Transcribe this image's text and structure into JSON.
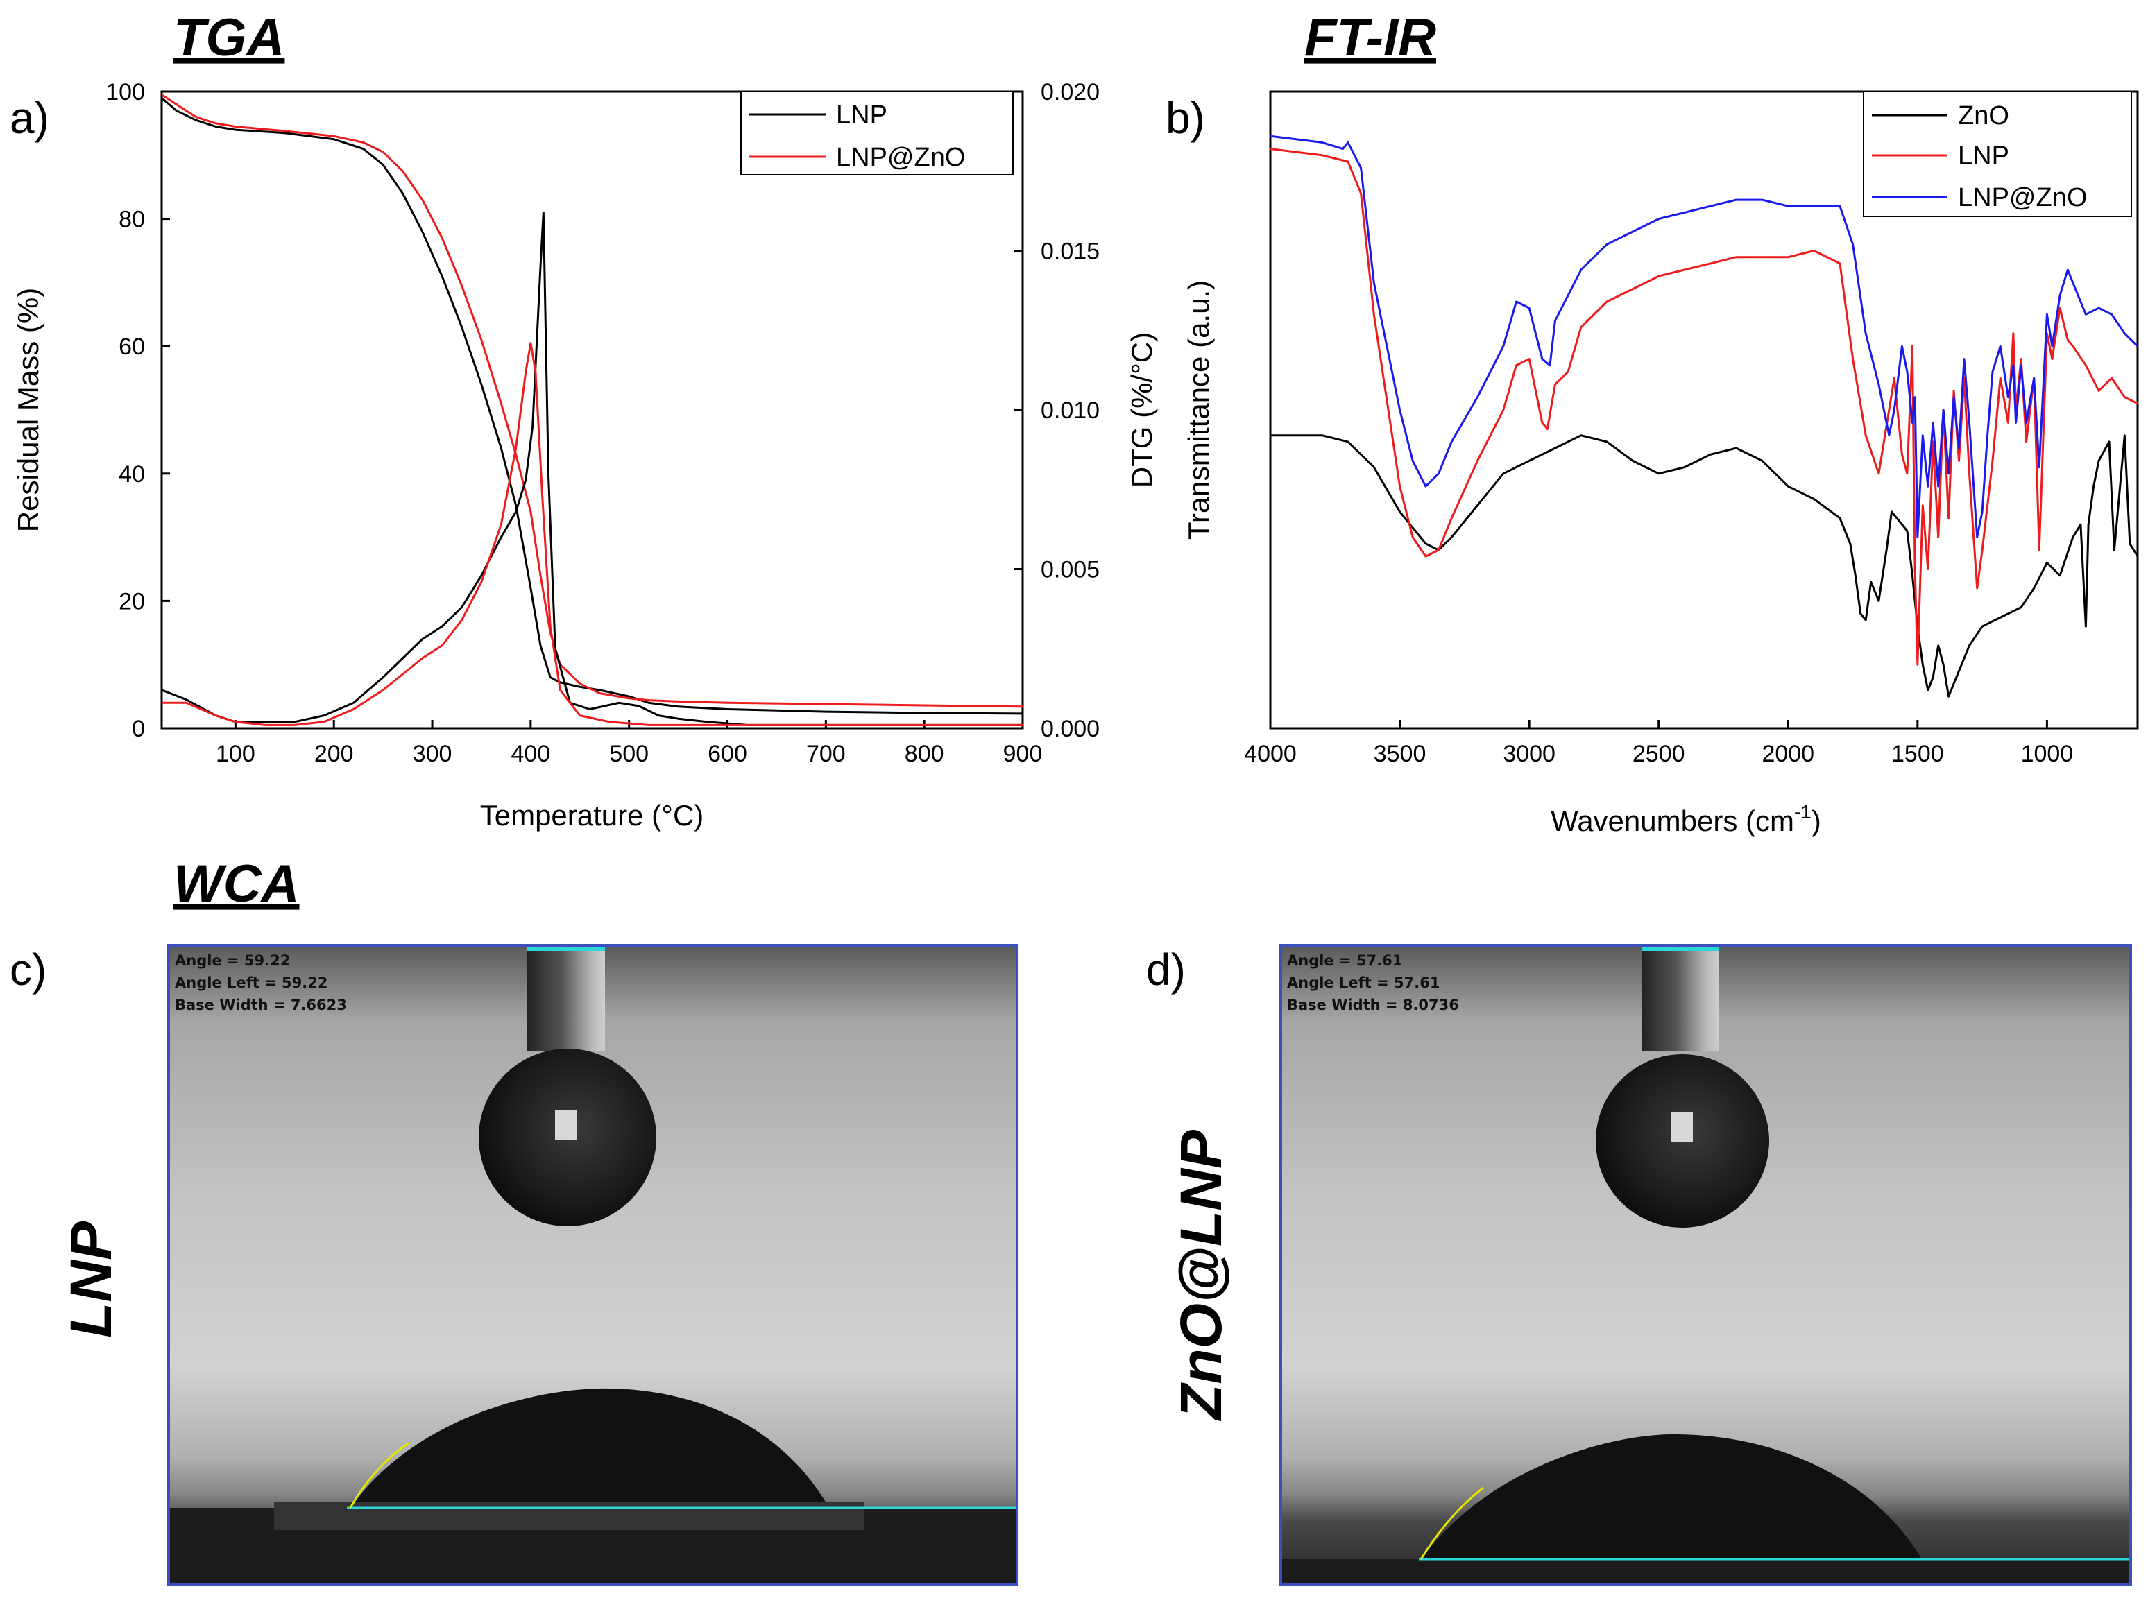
{
  "titles": {
    "tga": "TGA",
    "ftir": "FT-IR",
    "wca": "WCA"
  },
  "colors": {
    "black": "#000000",
    "red": "#ee1c1c",
    "blue": "#1a1aee",
    "cyan": "#2bd6d6",
    "frame": "#3b4fbf"
  },
  "chart_data": [
    {
      "panel": "a)",
      "type": "line",
      "title": "TGA",
      "xlabel": "Temperature (°C)",
      "ylabel": "Residual Mass (%)",
      "ylabel2": "DTG (%/°C)",
      "xlim": [
        25,
        900
      ],
      "ylim": [
        0,
        100
      ],
      "ylim2": [
        0,
        0.02
      ],
      "xticks": [
        "100",
        "200",
        "300",
        "400",
        "500",
        "600",
        "700",
        "800",
        "900"
      ],
      "yticks": [
        "0",
        "20",
        "40",
        "60",
        "80",
        "100"
      ],
      "yticks2": [
        "0.000",
        "0.005",
        "0.010",
        "0.015",
        "0.020"
      ],
      "legend": [
        {
          "name": "LNP",
          "color": "#000000"
        },
        {
          "name": "LNP@ZnO",
          "color": "#ee1c1c"
        }
      ],
      "legend_position": "top-right",
      "series": [
        {
          "name": "LNP",
          "axis": "mass",
          "color": "#000000",
          "x": [
            25,
            40,
            60,
            80,
            100,
            150,
            200,
            230,
            250,
            270,
            290,
            310,
            330,
            350,
            370,
            385,
            400,
            410,
            420,
            430,
            450,
            470,
            500,
            520,
            550,
            600,
            700,
            800,
            900
          ],
          "y": [
            99,
            97,
            95.5,
            94.5,
            94,
            93.5,
            92.5,
            91,
            88.5,
            84,
            78,
            71,
            63,
            54,
            44,
            35,
            22,
            13,
            8,
            7.2,
            6.5,
            6,
            5,
            4,
            3.4,
            3,
            2.6,
            2.4,
            2.3
          ]
        },
        {
          "name": "LNP@ZnO",
          "axis": "mass",
          "color": "#ee1c1c",
          "x": [
            25,
            40,
            60,
            80,
            100,
            150,
            200,
            230,
            250,
            270,
            290,
            310,
            330,
            350,
            370,
            385,
            400,
            410,
            420,
            430,
            450,
            470,
            500,
            520,
            550,
            600,
            700,
            800,
            900
          ],
          "y": [
            99.5,
            98,
            96,
            95,
            94.5,
            93.8,
            93,
            92,
            90.5,
            87.5,
            83,
            77,
            69.5,
            61,
            51,
            43,
            34,
            24,
            15,
            10,
            7,
            5.5,
            4.7,
            4.4,
            4.2,
            4,
            3.8,
            3.6,
            3.4
          ]
        },
        {
          "name": "LNP DTG",
          "axis": "dtg",
          "color": "#000000",
          "x": [
            25,
            50,
            80,
            100,
            130,
            160,
            190,
            220,
            250,
            270,
            290,
            310,
            330,
            350,
            370,
            385,
            395,
            402,
            410,
            413,
            418,
            425,
            440,
            460,
            490,
            510,
            530,
            550,
            580,
            620,
            700,
            800,
            900
          ],
          "y": [
            0.0012,
            0.0009,
            0.0004,
            0.0002,
            0.0002,
            0.0002,
            0.0004,
            0.0008,
            0.0016,
            0.0022,
            0.0028,
            0.0032,
            0.0038,
            0.0048,
            0.006,
            0.0068,
            0.0078,
            0.0095,
            0.0145,
            0.0162,
            0.008,
            0.0025,
            0.0008,
            0.0006,
            0.0008,
            0.0007,
            0.0004,
            0.0003,
            0.0002,
            0.0001,
            0.0001,
            0.0001,
            0.0001
          ]
        },
        {
          "name": "LNP@ZnO DTG",
          "axis": "dtg",
          "color": "#ee1c1c",
          "x": [
            25,
            50,
            80,
            100,
            130,
            160,
            190,
            220,
            250,
            270,
            290,
            310,
            330,
            350,
            370,
            385,
            395,
            400,
            405,
            412,
            420,
            430,
            450,
            480,
            520,
            600,
            700,
            800,
            900
          ],
          "y": [
            0.0008,
            0.0008,
            0.0004,
            0.0002,
            0.0001,
            0.0001,
            0.0002,
            0.0006,
            0.0012,
            0.0017,
            0.0022,
            0.0026,
            0.0034,
            0.0046,
            0.0064,
            0.0088,
            0.0112,
            0.0121,
            0.0112,
            0.0072,
            0.0032,
            0.0012,
            0.0004,
            0.0002,
            0.0001,
            0.0001,
            0.0001,
            0.0001,
            0.0001
          ]
        }
      ]
    },
    {
      "panel": "b)",
      "type": "line",
      "title": "FT-IR",
      "xlabel": "Wavenumbers (cm",
      "xlabel_sup": "-1",
      "xlabel_end": ")",
      "ylabel": "Transmittance (a.u.)",
      "xlim": [
        4000,
        650
      ],
      "ylim": [
        0,
        100
      ],
      "xticks": [
        "4000",
        "3500",
        "3000",
        "2500",
        "2000",
        "1500",
        "1000"
      ],
      "legend": [
        {
          "name": "ZnO",
          "color": "#000000"
        },
        {
          "name": "LNP",
          "color": "#ee1c1c"
        },
        {
          "name": "LNP@ZnO",
          "color": "#1a1aee"
        }
      ],
      "legend_position": "top-right",
      "series": [
        {
          "name": "ZnO",
          "color": "#000000",
          "x": [
            4000,
            3800,
            3700,
            3600,
            3500,
            3400,
            3350,
            3300,
            3200,
            3100,
            3000,
            2900,
            2800,
            2700,
            2600,
            2500,
            2400,
            2300,
            2200,
            2100,
            2000,
            1900,
            1800,
            1760,
            1740,
            1720,
            1700,
            1680,
            1650,
            1620,
            1600,
            1580,
            1560,
            1540,
            1520,
            1500,
            1480,
            1460,
            1440,
            1420,
            1400,
            1380,
            1350,
            1300,
            1250,
            1200,
            1150,
            1100,
            1050,
            1000,
            950,
            900,
            870,
            850,
            840,
            820,
            800,
            760,
            740,
            720,
            700,
            680,
            650
          ],
          "y": [
            46,
            46,
            45,
            41,
            34,
            29,
            28,
            30,
            35,
            40,
            42,
            44,
            46,
            45,
            42,
            40,
            41,
            43,
            44,
            42,
            38,
            36,
            33,
            29,
            24,
            18,
            17,
            23,
            20,
            28,
            34,
            33,
            32,
            31,
            24,
            16,
            10,
            6,
            8,
            13,
            10,
            5,
            8,
            13,
            16,
            17,
            18,
            19,
            22,
            26,
            24,
            30,
            32,
            16,
            32,
            38,
            42,
            45,
            28,
            37,
            46,
            29,
            27
          ]
        },
        {
          "name": "LNP",
          "color": "#ee1c1c",
          "x": [
            4000,
            3800,
            3700,
            3650,
            3600,
            3500,
            3450,
            3400,
            3350,
            3300,
            3200,
            3100,
            3050,
            3000,
            2950,
            2930,
            2900,
            2850,
            2800,
            2700,
            2600,
            2500,
            2400,
            2300,
            2200,
            2100,
            2000,
            1900,
            1800,
            1750,
            1700,
            1650,
            1610,
            1590,
            1560,
            1540,
            1520,
            1510,
            1500,
            1480,
            1460,
            1440,
            1420,
            1400,
            1380,
            1360,
            1340,
            1320,
            1300,
            1270,
            1250,
            1230,
            1210,
            1180,
            1150,
            1130,
            1120,
            1100,
            1080,
            1050,
            1030,
            1000,
            980,
            950,
            920,
            900,
            850,
            800,
            750,
            700,
            650
          ],
          "y": [
            91,
            90,
            89,
            84,
            65,
            38,
            30,
            27,
            28,
            33,
            42,
            50,
            57,
            58,
            48,
            47,
            54,
            56,
            63,
            67,
            69,
            71,
            72,
            73,
            74,
            74,
            74,
            75,
            73,
            58,
            46,
            40,
            50,
            55,
            43,
            40,
            60,
            25,
            10,
            35,
            25,
            45,
            30,
            50,
            33,
            53,
            42,
            55,
            40,
            22,
            28,
            35,
            42,
            55,
            48,
            62,
            50,
            58,
            45,
            55,
            28,
            62,
            58,
            66,
            61,
            60,
            57,
            53,
            55,
            52,
            51
          ]
        },
        {
          "name": "LNP@ZnO",
          "color": "#1a1aee",
          "x": [
            4000,
            3800,
            3720,
            3700,
            3650,
            3600,
            3500,
            3450,
            3400,
            3350,
            3300,
            3200,
            3100,
            3050,
            3000,
            2950,
            2920,
            2900,
            2850,
            2800,
            2700,
            2600,
            2500,
            2400,
            2300,
            2200,
            2100,
            2000,
            1900,
            1800,
            1750,
            1700,
            1650,
            1610,
            1590,
            1560,
            1540,
            1520,
            1510,
            1500,
            1480,
            1460,
            1440,
            1420,
            1400,
            1380,
            1360,
            1340,
            1320,
            1300,
            1270,
            1250,
            1230,
            1210,
            1180,
            1150,
            1130,
            1120,
            1100,
            1080,
            1050,
            1030,
            1000,
            980,
            950,
            920,
            900,
            850,
            800,
            750,
            700,
            650
          ],
          "y": [
            93,
            92,
            91,
            92,
            88,
            70,
            50,
            42,
            38,
            40,
            45,
            52,
            60,
            67,
            66,
            58,
            57,
            64,
            68,
            72,
            76,
            78,
            80,
            81,
            82,
            83,
            83,
            82,
            82,
            82,
            76,
            62,
            54,
            46,
            50,
            60,
            56,
            48,
            52,
            30,
            46,
            38,
            48,
            38,
            50,
            40,
            52,
            44,
            58,
            48,
            30,
            34,
            46,
            56,
            60,
            52,
            57,
            48,
            57,
            48,
            55,
            41,
            65,
            60,
            68,
            72,
            70,
            65,
            66,
            65,
            62,
            60
          ]
        }
      ]
    }
  ],
  "wca": {
    "panels": [
      {
        "label": "c)",
        "sample": "LNP",
        "readout": {
          "angle": "Angle =  59.22",
          "angle_left": "Angle Left =  59.22",
          "base_width": "Base Width =  7.6623"
        }
      },
      {
        "label": "d)",
        "sample": "ZnO@LNP",
        "readout": {
          "angle": "Angle =  57.61",
          "angle_left": "Angle Left =  57.61",
          "base_width": "Base Width =  8.0736"
        }
      }
    ]
  }
}
